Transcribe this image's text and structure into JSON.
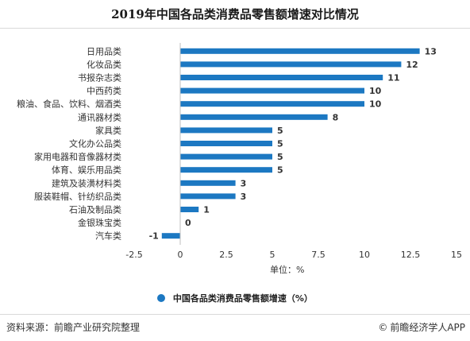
{
  "title": "2019年中国各品类消费品零售额增速对比情况",
  "source": "资料来源：前瞻产业研究院整理",
  "brand": "前瞻经济学人APP",
  "brand_icon": "copyright-icon",
  "colors": {
    "bar": "#1c78c2",
    "axis": "#bfbfbf"
  },
  "chart_data": {
    "type": "bar",
    "orientation": "horizontal",
    "title": "2019年中国各品类消费品零售额增速对比情况",
    "xlabel": "单位：%",
    "ylabel": "",
    "xlim": [
      -2.5,
      15
    ],
    "xticks": [
      -2.5,
      0,
      2.5,
      5,
      7.5,
      10,
      12.5,
      15
    ],
    "grid": false,
    "legend_position": "bottom",
    "categories": [
      "日用品类",
      "化妆品类",
      "书报杂志类",
      "中西药类",
      "粮油、食品、饮料、烟酒类",
      "通讯器材类",
      "家具类",
      "文化办公品类",
      "家用电器和音像器材类",
      "体育、娱乐用品类",
      "建筑及装潢材料类",
      "服装鞋帽、针纺织品类",
      "石油及制品类",
      "金银珠宝类",
      "汽车类"
    ],
    "series": [
      {
        "name": "中国各品类消费品零售额增速（%）",
        "values": [
          13,
          12,
          11,
          10,
          10,
          8,
          5,
          5,
          5,
          5,
          3,
          3,
          1,
          0,
          -1
        ]
      }
    ]
  }
}
